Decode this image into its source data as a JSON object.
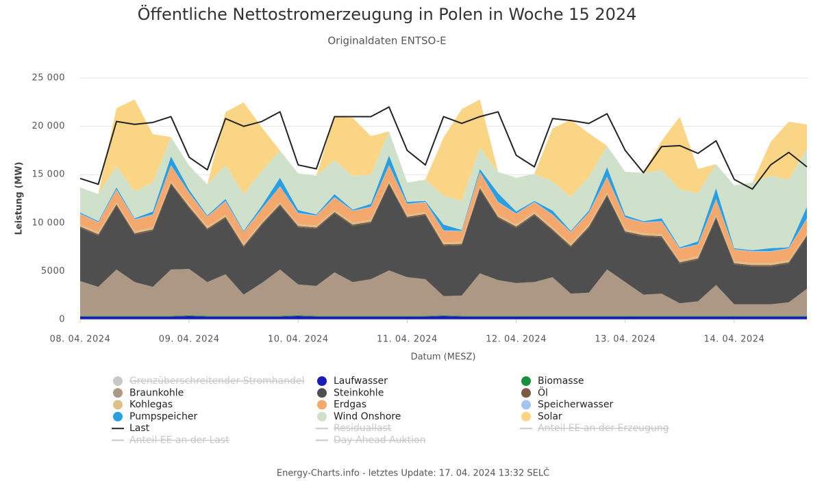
{
  "chart_data": {
    "type": "stacked_area",
    "title": "Öffentliche Nettostromerzeugung in Polen in Woche 15 2024",
    "subtitle": "Originaldaten ENTSO-E",
    "y_label": "Leistung (MW)",
    "x_label": "Datum (MESZ)",
    "footer": "Energy-Charts.info - letztes Update: 17. 04. 2024 13:32 SELČ",
    "x": [
      0,
      4,
      8,
      12,
      16,
      20,
      24,
      28,
      32,
      36,
      40,
      44,
      48,
      52,
      56,
      60,
      64,
      68,
      72,
      76,
      80,
      84,
      88,
      92,
      96,
      100,
      104,
      108,
      112,
      116,
      120,
      124,
      128,
      132,
      136,
      140,
      144,
      148,
      152,
      156,
      160
    ],
    "xlim": [
      0,
      160
    ],
    "xticks": [
      {
        "value": 0,
        "label": "08. 04. 2024"
      },
      {
        "value": 24,
        "label": "09. 04. 2024"
      },
      {
        "value": 48,
        "label": "10. 04. 2024"
      },
      {
        "value": 72,
        "label": "11. 04. 2024"
      },
      {
        "value": 96,
        "label": "12. 04. 2024"
      },
      {
        "value": 120,
        "label": "13. 04. 2024"
      },
      {
        "value": 144,
        "label": "14. 04. 2024"
      }
    ],
    "ylim": [
      0,
      25000
    ],
    "yticks": [
      0,
      5000,
      {
        "value": 10000,
        "label": "10 000"
      },
      {
        "value": 15000,
        "label": "15 000"
      },
      {
        "value": 20000,
        "label": "20 000"
      },
      {
        "value": 25000,
        "label": "25 000"
      }
    ],
    "grid": true,
    "series": [
      {
        "name": "Grenzüberschreitender Stromhandel",
        "color": "#c8c8c8",
        "visible": false,
        "kind": "area"
      },
      {
        "name": "Laufwasser",
        "color": "#1a1ab8",
        "visible": true,
        "kind": "area",
        "values": [
          300,
          300,
          300,
          300,
          300,
          300,
          350,
          300,
          300,
          300,
          300,
          300,
          350,
          300,
          300,
          300,
          300,
          300,
          300,
          300,
          350,
          300,
          300,
          300,
          300,
          300,
          300,
          300,
          300,
          300,
          300,
          300,
          300,
          300,
          300,
          300,
          300,
          300,
          300,
          300,
          300
        ]
      },
      {
        "name": "Biomasse",
        "color": "#17913a",
        "visible": true,
        "kind": "area",
        "values": [
          80,
          80,
          80,
          80,
          80,
          80,
          80,
          80,
          80,
          80,
          80,
          80,
          80,
          80,
          80,
          80,
          80,
          80,
          80,
          80,
          80,
          80,
          80,
          80,
          80,
          80,
          80,
          80,
          80,
          80,
          80,
          80,
          80,
          80,
          80,
          80,
          80,
          80,
          80,
          80,
          80
        ]
      },
      {
        "name": "Braunkohle",
        "color": "#ad9886",
        "visible": true,
        "kind": "area",
        "values": [
          3600,
          3000,
          4800,
          3500,
          3000,
          4800,
          4800,
          3500,
          4300,
          2200,
          3400,
          4800,
          3200,
          3100,
          4500,
          3500,
          3800,
          4700,
          4000,
          3800,
          2000,
          2100,
          4400,
          3700,
          3400,
          3500,
          4000,
          2300,
          2400,
          4800,
          3500,
          2200,
          2300,
          1300,
          1500,
          3200,
          1200,
          1200,
          1200,
          1400,
          2800
        ]
      },
      {
        "name": "Steinkohle",
        "color": "#4f4f4f",
        "visible": true,
        "kind": "area",
        "values": [
          5500,
          5300,
          6600,
          4900,
          5800,
          8800,
          6300,
          5400,
          5800,
          4900,
          6000,
          6600,
          5900,
          5900,
          6100,
          5800,
          5800,
          8900,
          6100,
          6600,
          5200,
          5200,
          8700,
          6400,
          5700,
          6900,
          4800,
          4800,
          6700,
          7600,
          5100,
          6000,
          5800,
          4100,
          4300,
          6900,
          4100,
          3900,
          3900,
          4000,
          5400
        ]
      },
      {
        "name": "Öl",
        "color": "#7b5b45",
        "visible": true,
        "kind": "area",
        "values": [
          150,
          150,
          150,
          150,
          150,
          150,
          150,
          150,
          150,
          150,
          150,
          150,
          150,
          150,
          150,
          150,
          150,
          150,
          150,
          150,
          150,
          150,
          150,
          150,
          150,
          150,
          150,
          150,
          150,
          150,
          150,
          150,
          150,
          150,
          150,
          150,
          150,
          150,
          150,
          150,
          150
        ]
      },
      {
        "name": "Kohlegas",
        "color": "#dcc08a",
        "visible": true,
        "kind": "area",
        "values": [
          200,
          200,
          200,
          200,
          200,
          200,
          200,
          200,
          200,
          200,
          200,
          200,
          200,
          200,
          200,
          200,
          200,
          200,
          200,
          200,
          200,
          200,
          200,
          200,
          200,
          200,
          200,
          200,
          200,
          200,
          200,
          200,
          200,
          200,
          200,
          200,
          200,
          200,
          200,
          200,
          200
        ]
      },
      {
        "name": "Erdgas",
        "color": "#f5a86e",
        "visible": true,
        "kind": "area",
        "values": [
          1100,
          1000,
          1300,
          1200,
          1300,
          1600,
          1200,
          1000,
          1400,
          1200,
          1300,
          1600,
          1100,
          1000,
          1300,
          1200,
          1300,
          1600,
          1100,
          1000,
          1200,
          1100,
          1400,
          1300,
          1100,
          1000,
          1300,
          1200,
          1200,
          1600,
          1200,
          1100,
          1300,
          1200,
          1200,
          1600,
          1200,
          1200,
          1200,
          1200,
          1500
        ]
      },
      {
        "name": "Speicherwasser",
        "color": "#a9c3ef",
        "visible": true,
        "kind": "area",
        "values": [
          50,
          50,
          50,
          50,
          50,
          50,
          50,
          50,
          50,
          50,
          50,
          50,
          50,
          50,
          50,
          50,
          50,
          50,
          50,
          50,
          50,
          50,
          50,
          50,
          50,
          50,
          50,
          50,
          50,
          50,
          50,
          50,
          50,
          50,
          50,
          50,
          50,
          50,
          50,
          50,
          50
        ]
      },
      {
        "name": "Pumpspeicher",
        "color": "#2a9fe0",
        "visible": true,
        "kind": "area",
        "values": [
          100,
          100,
          200,
          100,
          300,
          900,
          300,
          100,
          200,
          100,
          300,
          900,
          300,
          100,
          300,
          100,
          300,
          1000,
          200,
          100,
          600,
          100,
          300,
          900,
          200,
          100,
          400,
          100,
          200,
          1000,
          200,
          100,
          300,
          100,
          300,
          1100,
          100,
          100,
          300,
          100,
          1200
        ]
      },
      {
        "name": "Wind Onshore",
        "color": "#cfe1ca",
        "visible": true,
        "kind": "area",
        "values": [
          2600,
          2800,
          2200,
          2800,
          3000,
          2000,
          2500,
          3200,
          3500,
          3800,
          3600,
          2800,
          3800,
          4000,
          3500,
          3500,
          3000,
          2500,
          2000,
          2200,
          3000,
          3000,
          2200,
          2200,
          3500,
          2800,
          3000,
          3500,
          3500,
          2200,
          4500,
          5000,
          5000,
          6000,
          5000,
          2500,
          6500,
          7000,
          7500,
          7000,
          6000
        ]
      },
      {
        "name": "Solar",
        "color": "#fbd586",
        "visible": true,
        "kind": "area",
        "values": [
          0,
          0,
          6000,
          9500,
          5000,
          0,
          0,
          0,
          5500,
          9500,
          4500,
          0,
          0,
          0,
          4500,
          6000,
          4000,
          0,
          0,
          0,
          6000,
          9500,
          5000,
          0,
          0,
          0,
          5500,
          8000,
          4500,
          0,
          0,
          0,
          3000,
          7500,
          2500,
          0,
          0,
          0,
          3500,
          6000,
          2500
        ]
      },
      {
        "name": "Last",
        "color": "#222222",
        "visible": true,
        "kind": "line",
        "values": [
          14600,
          14000,
          20500,
          20200,
          20400,
          21000,
          16800,
          15500,
          20800,
          20000,
          20500,
          21500,
          16000,
          15600,
          21000,
          21000,
          21000,
          22000,
          17500,
          16000,
          21000,
          20300,
          21000,
          21500,
          17000,
          15800,
          20800,
          20600,
          20300,
          21300,
          17500,
          15200,
          17900,
          18000,
          17200,
          18500,
          14500,
          13500,
          16000,
          17300,
          15800
        ]
      },
      {
        "name": "Residuallast",
        "color": "#c8c8c8",
        "visible": false,
        "kind": "line"
      },
      {
        "name": "Anteil EE an der Erzeugung",
        "color": "#c8c8c8",
        "visible": false,
        "kind": "line"
      },
      {
        "name": "Anteil EE an der Last",
        "color": "#c8c8c8",
        "visible": false,
        "kind": "line"
      },
      {
        "name": "Day Ahead Auktion",
        "color": "#c8c8c8",
        "visible": false,
        "kind": "line"
      }
    ]
  }
}
